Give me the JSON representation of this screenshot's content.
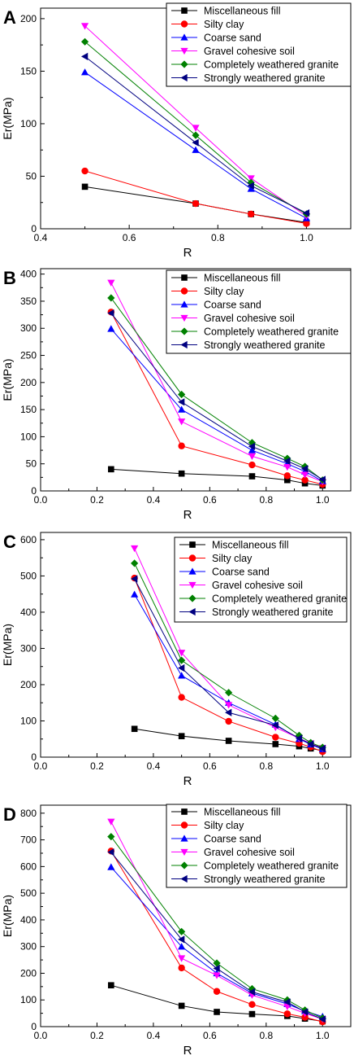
{
  "chart_data": [
    {
      "panel": "A",
      "type": "line",
      "xlabel": "R",
      "ylabel": "Er(MPa)",
      "xlim": [
        0.4,
        1.1
      ],
      "ylim": [
        0,
        210
      ],
      "xticks": [
        0.4,
        0.6,
        0.8,
        1.0
      ],
      "yticks": [
        0,
        50,
        100,
        150,
        200
      ],
      "xtick_labels": [
        "0.4",
        "0.6",
        "0.8",
        "1.0"
      ],
      "ytick_labels": [
        "0",
        "50",
        "100",
        "150",
        "200"
      ],
      "legend_position": "top-right",
      "series": [
        {
          "name": "Miscellaneous fill",
          "color": "#000000",
          "marker": "square",
          "x": [
            0.5,
            0.75,
            0.875,
            1.0
          ],
          "values": [
            40,
            24,
            14,
            6
          ]
        },
        {
          "name": "Silty clay",
          "color": "#ff0000",
          "marker": "circle",
          "x": [
            0.5,
            0.75,
            0.875,
            1.0
          ],
          "values": [
            55,
            24,
            14,
            5
          ]
        },
        {
          "name": "Coarse sand",
          "color": "#0000ff",
          "marker": "triangle-up",
          "x": [
            0.5,
            0.75,
            0.875,
            1.0
          ],
          "values": [
            149,
            75,
            38,
            10
          ]
        },
        {
          "name": "Gravel cohesive soil",
          "color": "#ff00ff",
          "marker": "triangle-down",
          "x": [
            0.5,
            0.75,
            0.875,
            1.0
          ],
          "values": [
            193,
            96,
            48,
            12
          ]
        },
        {
          "name": "Completely weathered granite",
          "color": "#008000",
          "marker": "diamond",
          "x": [
            0.5,
            0.75,
            0.875,
            1.0
          ],
          "values": [
            178,
            89,
            44,
            14
          ]
        },
        {
          "name": "Strongly weathered granite",
          "color": "#000080",
          "marker": "triangle-left",
          "x": [
            0.5,
            0.75,
            0.875,
            1.0
          ],
          "values": [
            164,
            82,
            41,
            15
          ]
        }
      ]
    },
    {
      "panel": "B",
      "type": "line",
      "xlabel": "R",
      "ylabel": "Er(MPa)",
      "xlim": [
        0.0,
        1.1
      ],
      "ylim": [
        0,
        410
      ],
      "xticks": [
        0.0,
        0.2,
        0.4,
        0.6,
        0.8,
        1.0
      ],
      "yticks": [
        0,
        50,
        100,
        150,
        200,
        250,
        300,
        350,
        400
      ],
      "xtick_labels": [
        "0.0",
        "0.2",
        "0.4",
        "0.6",
        "0.8",
        "1.0"
      ],
      "ytick_labels": [
        "0",
        "50",
        "100",
        "150",
        "200",
        "250",
        "300",
        "350",
        "400"
      ],
      "legend_position": "top-right",
      "series": [
        {
          "name": "Miscellaneous fill",
          "color": "#000000",
          "marker": "square",
          "x": [
            0.25,
            0.5,
            0.75,
            0.875,
            0.9375,
            1.0
          ],
          "values": [
            40,
            32,
            27,
            20,
            14,
            10
          ]
        },
        {
          "name": "Silty clay",
          "color": "#ff0000",
          "marker": "circle",
          "x": [
            0.25,
            0.5,
            0.75,
            0.875,
            0.9375,
            1.0
          ],
          "values": [
            330,
            83,
            48,
            28,
            20,
            12
          ]
        },
        {
          "name": "Coarse sand",
          "color": "#0000ff",
          "marker": "triangle-up",
          "x": [
            0.25,
            0.5,
            0.75,
            0.875,
            0.9375,
            1.0
          ],
          "values": [
            299,
            150,
            75,
            50,
            36,
            18
          ]
        },
        {
          "name": "Gravel cohesive soil",
          "color": "#ff00ff",
          "marker": "triangle-down",
          "x": [
            0.25,
            0.5,
            0.75,
            0.875,
            0.9375,
            1.0
          ],
          "values": [
            384,
            128,
            64,
            44,
            30,
            17
          ]
        },
        {
          "name": "Completely weathered granite",
          "color": "#008000",
          "marker": "diamond",
          "x": [
            0.25,
            0.5,
            0.75,
            0.875,
            0.9375,
            1.0
          ],
          "values": [
            356,
            178,
            89,
            60,
            45,
            20
          ]
        },
        {
          "name": "Strongly weathered granite",
          "color": "#000080",
          "marker": "triangle-left",
          "x": [
            0.25,
            0.5,
            0.75,
            0.875,
            0.9375,
            1.0
          ],
          "values": [
            328,
            164,
            82,
            55,
            41,
            21
          ]
        }
      ]
    },
    {
      "panel": "C",
      "type": "line",
      "xlabel": "R",
      "ylabel": "Er(MPa)",
      "xlim": [
        0.0,
        1.1
      ],
      "ylim": [
        0,
        620
      ],
      "xticks": [
        0.0,
        0.2,
        0.4,
        0.6,
        0.8,
        1.0
      ],
      "yticks": [
        0,
        100,
        200,
        300,
        400,
        500,
        600
      ],
      "xtick_labels": [
        "0.0",
        "0.2",
        "0.4",
        "0.6",
        "0.8",
        "1.0"
      ],
      "ytick_labels": [
        "0",
        "100",
        "200",
        "300",
        "400",
        "500",
        "600"
      ],
      "legend_position": "top-right",
      "series": [
        {
          "name": "Miscellaneous fill",
          "color": "#000000",
          "marker": "square",
          "x": [
            0.333,
            0.5,
            0.667,
            0.833,
            0.917,
            0.958,
            1.0
          ],
          "values": [
            78,
            58,
            45,
            36,
            30,
            24,
            18
          ]
        },
        {
          "name": "Silty clay",
          "color": "#ff0000",
          "marker": "circle",
          "x": [
            0.333,
            0.5,
            0.667,
            0.833,
            0.917,
            0.958,
            1.0
          ],
          "values": [
            494,
            165,
            99,
            55,
            38,
            28,
            15
          ]
        },
        {
          "name": "Coarse sand",
          "color": "#0000ff",
          "marker": "triangle-up",
          "x": [
            0.333,
            0.5,
            0.667,
            0.833,
            0.917,
            0.958,
            1.0
          ],
          "values": [
            449,
            225,
            150,
            90,
            50,
            35,
            22
          ]
        },
        {
          "name": "Gravel cohesive soil",
          "color": "#ff00ff",
          "marker": "triangle-down",
          "x": [
            0.333,
            0.5,
            0.667,
            0.833,
            0.917,
            0.958,
            1.0
          ],
          "values": [
            576,
            288,
            144,
            82,
            52,
            38,
            25
          ]
        },
        {
          "name": "Completely weathered granite",
          "color": "#008000",
          "marker": "diamond",
          "x": [
            0.333,
            0.5,
            0.667,
            0.833,
            0.917,
            0.958,
            1.0
          ],
          "values": [
            535,
            267,
            178,
            107,
            60,
            40,
            27
          ]
        },
        {
          "name": "Strongly weathered granite",
          "color": "#000080",
          "marker": "triangle-left",
          "x": [
            0.333,
            0.5,
            0.667,
            0.833,
            0.917,
            0.958,
            1.0
          ],
          "values": [
            492,
            246,
            123,
            88,
            52,
            36,
            24
          ]
        }
      ]
    },
    {
      "panel": "D",
      "type": "line",
      "xlabel": "R",
      "ylabel": "Er(MPa)",
      "xlim": [
        0.0,
        1.1
      ],
      "ylim": [
        0,
        830
      ],
      "xticks": [
        0.0,
        0.2,
        0.4,
        0.6,
        0.8,
        1.0
      ],
      "yticks": [
        0,
        100,
        200,
        300,
        400,
        500,
        600,
        700,
        800
      ],
      "xtick_labels": [
        "0.0",
        "0.2",
        "0.4",
        "0.6",
        "0.8",
        "1.0"
      ],
      "ytick_labels": [
        "0",
        "100",
        "200",
        "300",
        "400",
        "500",
        "600",
        "700",
        "800"
      ],
      "legend_position": "top-right",
      "series": [
        {
          "name": "Miscellaneous fill",
          "color": "#000000",
          "marker": "square",
          "x": [
            0.25,
            0.5,
            0.625,
            0.75,
            0.875,
            0.9375,
            1.0
          ],
          "values": [
            155,
            78,
            55,
            47,
            40,
            30,
            20
          ]
        },
        {
          "name": "Silty clay",
          "color": "#ff0000",
          "marker": "circle",
          "x": [
            0.25,
            0.5,
            0.625,
            0.75,
            0.875,
            0.9375,
            1.0
          ],
          "values": [
            658,
            220,
            132,
            83,
            48,
            35,
            18
          ]
        },
        {
          "name": "Coarse sand",
          "color": "#0000ff",
          "marker": "triangle-up",
          "x": [
            0.25,
            0.5,
            0.625,
            0.75,
            0.875,
            0.9375,
            1.0
          ],
          "values": [
            598,
            300,
            200,
            125,
            85,
            58,
            38
          ]
        },
        {
          "name": "Gravel cohesive soil",
          "color": "#ff00ff",
          "marker": "triangle-down",
          "x": [
            0.25,
            0.5,
            0.625,
            0.75,
            0.875,
            0.9375,
            1.0
          ],
          "values": [
            768,
            256,
            192,
            118,
            75,
            50,
            28
          ]
        },
        {
          "name": "Completely weathered granite",
          "color": "#008000",
          "marker": "diamond",
          "x": [
            0.25,
            0.5,
            0.625,
            0.75,
            0.875,
            0.9375,
            1.0
          ],
          "values": [
            712,
            356,
            238,
            142,
            100,
            62,
            32
          ]
        },
        {
          "name": "Strongly weathered granite",
          "color": "#000080",
          "marker": "triangle-left",
          "x": [
            0.25,
            0.5,
            0.625,
            0.75,
            0.875,
            0.9375,
            1.0
          ],
          "values": [
            654,
            327,
            218,
            130,
            92,
            55,
            28
          ]
        }
      ]
    }
  ]
}
